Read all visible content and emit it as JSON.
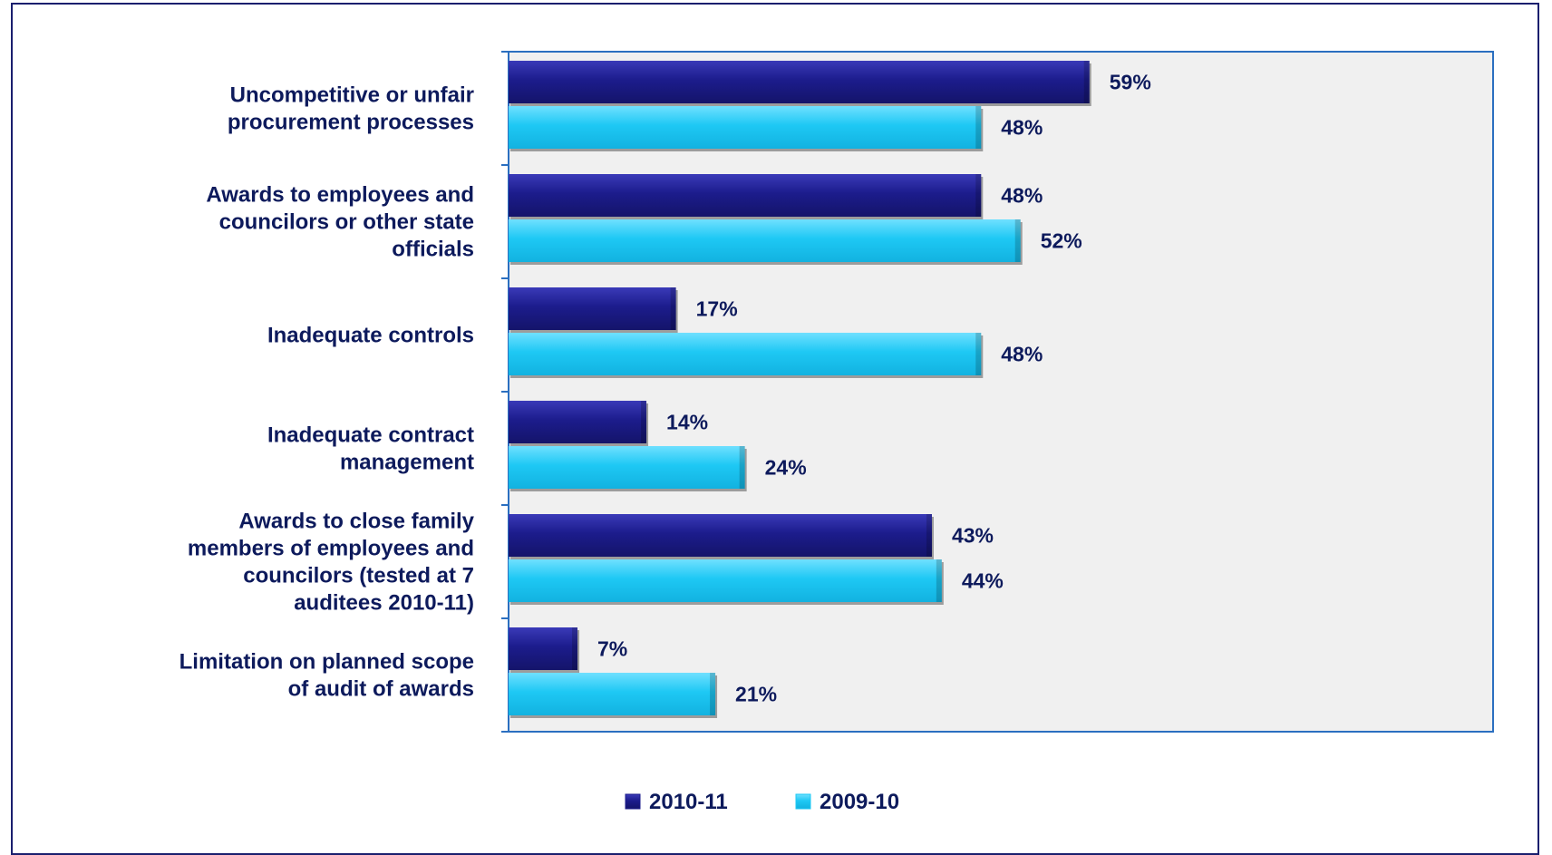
{
  "chart_data": {
    "type": "bar",
    "orientation": "horizontal",
    "categories": [
      [
        "Uncompetitive or unfair",
        "procurement processes"
      ],
      [
        "Awards to employees and",
        "councilors or other state",
        "officials"
      ],
      [
        "Inadequate controls"
      ],
      [
        "Inadequate contract",
        "management"
      ],
      [
        "Awards to close family",
        "members of employees and",
        "councilors (tested  at 7",
        "auditees 2010-11)"
      ],
      [
        "Limitation on planned scope",
        "of audit of awards"
      ]
    ],
    "series": [
      {
        "name": "2010-11",
        "values": [
          59,
          48,
          17,
          14,
          43,
          7
        ],
        "labels": [
          "59%",
          "48%",
          "17%",
          "14%",
          "43%",
          "7%"
        ],
        "color": "#1c1c8c"
      },
      {
        "name": "2009-10",
        "values": [
          48,
          52,
          48,
          24,
          44,
          21
        ],
        "labels": [
          "48%",
          "52%",
          "48%",
          "24%",
          "44%",
          "21%"
        ],
        "color": "#1ec8f4"
      }
    ],
    "xlim": [
      0,
      100
    ],
    "grid": false,
    "legend_position": "bottom",
    "plot_background": "#f0f0f0",
    "axis_color": "#2b6fc0"
  }
}
